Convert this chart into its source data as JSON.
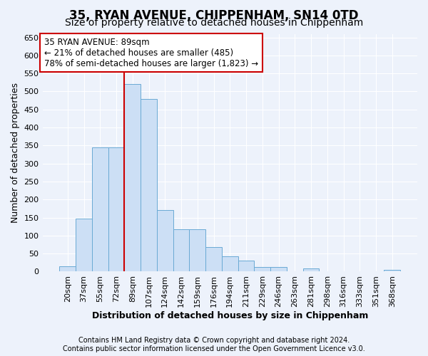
{
  "title": "35, RYAN AVENUE, CHIPPENHAM, SN14 0TD",
  "subtitle": "Size of property relative to detached houses in Chippenham",
  "xlabel": "Distribution of detached houses by size in Chippenham",
  "ylabel": "Number of detached properties",
  "categories": [
    "20sqm",
    "37sqm",
    "55sqm",
    "72sqm",
    "89sqm",
    "107sqm",
    "124sqm",
    "142sqm",
    "159sqm",
    "176sqm",
    "194sqm",
    "211sqm",
    "229sqm",
    "246sqm",
    "263sqm",
    "281sqm",
    "298sqm",
    "316sqm",
    "333sqm",
    "351sqm",
    "368sqm"
  ],
  "values": [
    15,
    148,
    345,
    345,
    520,
    480,
    170,
    118,
    118,
    68,
    42,
    30,
    13,
    13,
    0,
    8,
    0,
    0,
    0,
    0,
    5
  ],
  "bar_color": "#ccdff5",
  "bar_edge_color": "#6aaad4",
  "highlight_bar_index": 4,
  "annotation_line1": "35 RYAN AVENUE: 89sqm",
  "annotation_line2": "← 21% of detached houses are smaller (485)",
  "annotation_line3": "78% of semi-detached houses are larger (1,823) →",
  "annotation_box_facecolor": "#ffffff",
  "annotation_box_edgecolor": "#cc0000",
  "highlight_line_color": "#cc0000",
  "footer_line1": "Contains HM Land Registry data © Crown copyright and database right 2024.",
  "footer_line2": "Contains public sector information licensed under the Open Government Licence v3.0.",
  "ylim": [
    0,
    660
  ],
  "yticks": [
    0,
    50,
    100,
    150,
    200,
    250,
    300,
    350,
    400,
    450,
    500,
    550,
    600,
    650
  ],
  "background_color": "#edf2fb",
  "grid_color": "#ffffff",
  "title_fontsize": 12,
  "subtitle_fontsize": 10,
  "ylabel_fontsize": 9,
  "xlabel_fontsize": 9,
  "tick_fontsize": 8,
  "annotation_fontsize": 8.5,
  "footer_fontsize": 7
}
